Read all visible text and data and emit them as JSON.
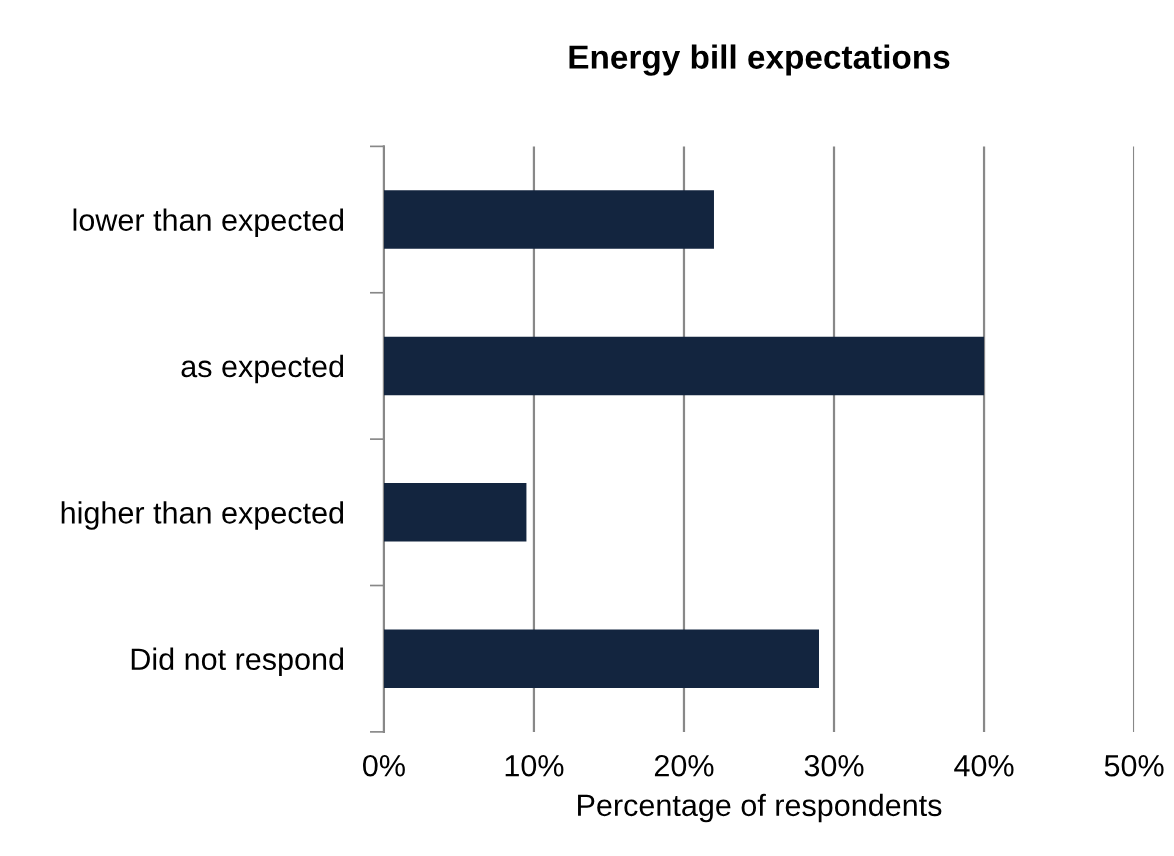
{
  "chart_data": {
    "type": "bar",
    "orientation": "horizontal",
    "title": "Energy bill expectations",
    "xlabel": "Percentage of respondents",
    "categories": [
      "lower than expected",
      "as expected",
      "higher than expected",
      "Did not respond"
    ],
    "values": [
      22,
      40,
      9.5,
      29
    ],
    "color": "#13253f",
    "xlim": [
      0,
      50
    ],
    "xticks": [
      {
        "value": 0,
        "label": "0%"
      },
      {
        "value": 10,
        "label": "10%"
      },
      {
        "value": 20,
        "label": "20%"
      },
      {
        "value": 30,
        "label": "30%"
      },
      {
        "value": 40,
        "label": "40%"
      },
      {
        "value": 50,
        "label": "50%"
      }
    ],
    "grid": "x",
    "legend": false
  }
}
